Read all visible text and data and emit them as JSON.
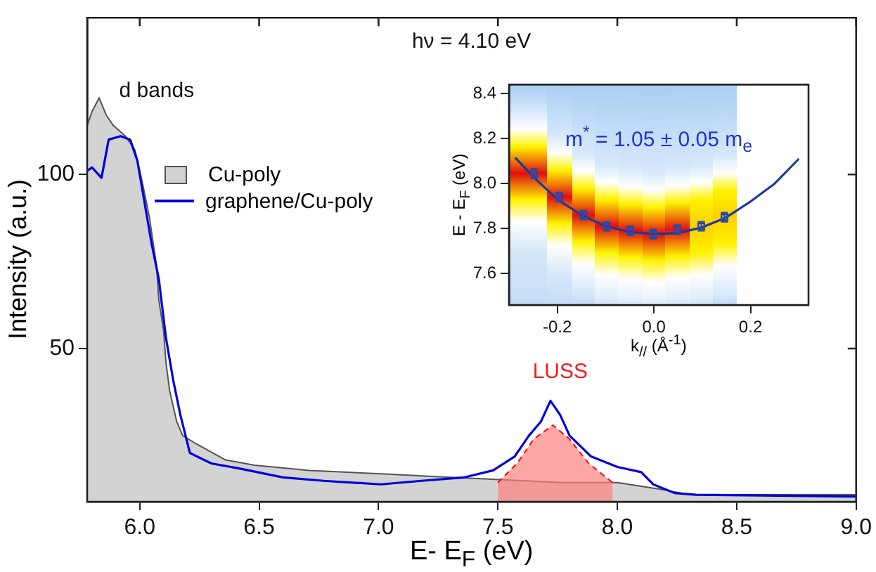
{
  "chart_data": [
    {
      "type": "area",
      "xlabel": "E- E$_{F}$  (eV)",
      "ylabel": "Intensity (a.u.)",
      "xlim": [
        5.78,
        9.0
      ],
      "ylim": [
        6,
        145
      ],
      "xticks": [
        {
          "value": 6,
          "label": "6.0"
        },
        6.5,
        {
          "value": 7,
          "label": "7.0"
        },
        7.5,
        {
          "value": 8,
          "label": "8.0"
        },
        8.5,
        {
          "value": 9,
          "label": "9.0"
        }
      ],
      "yticks": [
        50,
        100
      ],
      "grid": false,
      "legend": "top left",
      "annotations": [
        "hν = 4.10 eV",
        "d bands",
        "LUSS"
      ],
      "series": [
        {
          "name": "Cu-poly",
          "color": "#d3d3d3",
          "x": [
            5.78,
            5.8,
            5.83,
            5.86,
            5.89,
            5.94,
            5.98,
            6.01,
            6.04,
            6.07,
            6.08,
            6.1,
            6.11,
            6.125,
            6.155,
            6.18,
            6.24,
            6.36,
            6.48,
            6.71,
            7.01,
            7.3,
            7.77,
            8.0,
            8.19,
            8.3,
            9.0
          ],
          "values": [
            114,
            118,
            122,
            117,
            114,
            111,
            107,
            98,
            88,
            74,
            64,
            55,
            46,
            38,
            29,
            25,
            22.5,
            18,
            16.5,
            15,
            14,
            13,
            11.5,
            11.5,
            9.5,
            8,
            8
          ]
        },
        {
          "color": "#ff7f7f",
          "line_style": "dashed",
          "x": [
            7.5,
            7.58,
            7.65,
            7.73,
            7.8,
            7.88,
            7.98
          ],
          "values": [
            11.5,
            17,
            24,
            28,
            24,
            17,
            11.5
          ]
        },
        {
          "name": "graphene/Cu-poly",
          "type": "line",
          "color": "#0000dd",
          "x": [
            5.78,
            5.8,
            5.84,
            5.87,
            5.92,
            5.96,
            5.99,
            6.02,
            6.05,
            6.08,
            6.11,
            6.14,
            6.17,
            6.21,
            6.3,
            6.42,
            6.6,
            6.77,
            7.01,
            7.18,
            7.36,
            7.48,
            7.57,
            7.63,
            7.68,
            7.72,
            7.76,
            7.8,
            7.89,
            8.0,
            8.1,
            8.15,
            8.24,
            8.33,
            9.0
          ],
          "values": [
            101,
            102,
            99,
            110,
            111,
            110,
            104,
            92,
            80,
            70,
            53,
            41,
            31,
            20,
            17,
            15.5,
            13,
            12,
            11,
            12,
            13,
            15,
            19,
            25,
            29,
            35,
            31,
            25,
            19,
            16,
            14.5,
            11,
            8.5,
            8,
            7.5
          ]
        }
      ]
    },
    {
      "type": "scatter",
      "xlabel": "k$_{//}$ (Å$^{-1}$)",
      "ylabel": "E - E$_{F}$ (eV)",
      "xlim": [
        -0.3,
        0.32
      ],
      "ylim": [
        7.46,
        8.44
      ],
      "xticks": [
        -0.2,
        {
          "value": 0,
          "label": "0.0"
        },
        0.2
      ],
      "yticks": [
        7.6,
        7.8,
        {
          "value": 8,
          "label": "8.0"
        },
        8.2,
        8.4
      ],
      "grid": false,
      "annotations": [
        "m$^{*}$ = 1.05 ± 0.05 m$_{e}$"
      ],
      "series": [
        {
          "type": "line",
          "color": "#1c3b9c",
          "x": [
            -0.287,
            -0.25,
            -0.2,
            -0.15,
            -0.1,
            -0.05,
            0,
            0.05,
            0.1,
            0.15,
            0.2,
            0.25,
            0.3
          ],
          "values": [
            8.115,
            8.03,
            7.93,
            7.86,
            7.81,
            7.785,
            7.775,
            7.78,
            7.805,
            7.85,
            7.92,
            8.0,
            8.11
          ]
        },
        {
          "marker": "square",
          "color": "#2a4aa8",
          "x": [
            -0.248,
            -0.196,
            -0.146,
            -0.098,
            -0.049,
            -0.001,
            0.049,
            0.098,
            0.146
          ],
          "values": [
            8.045,
            7.94,
            7.86,
            7.81,
            7.79,
            7.775,
            7.795,
            7.81,
            7.85
          ],
          "errors": [
            0.02,
            0.02,
            0.02,
            0.02,
            0.02,
            0.02,
            0.02,
            0.02,
            0.02
          ]
        }
      ]
    }
  ]
}
